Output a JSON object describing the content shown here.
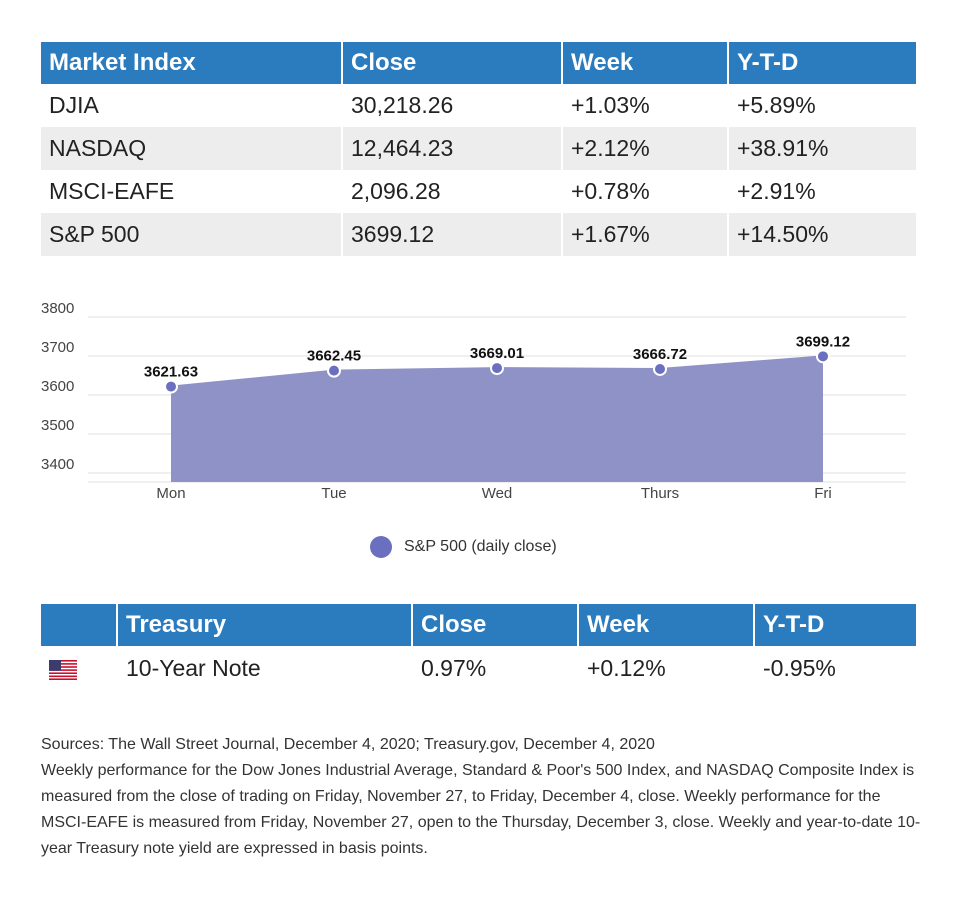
{
  "market_table": {
    "headers": [
      "Market Index",
      "Close",
      "Week",
      "Y-T-D"
    ],
    "rows": [
      [
        "DJIA",
        "30,218.26",
        "+1.03%",
        "+5.89%"
      ],
      [
        "NASDAQ",
        "12,464.23",
        "+2.12%",
        "+38.91%"
      ],
      [
        "MSCI-EAFE",
        "2,096.28",
        "+0.78%",
        "+2.91%"
      ],
      [
        "S&P 500",
        "3699.12",
        "+1.67%",
        "+14.50%"
      ]
    ]
  },
  "chart_data": {
    "type": "area",
    "categories": [
      "Mon",
      "Tue",
      "Wed",
      "Thurs",
      "Fri"
    ],
    "series": [
      {
        "name": "S&P 500 (daily close)",
        "values": [
          3621.63,
          3662.45,
          3669.01,
          3666.72,
          3699.12
        ]
      }
    ],
    "data_labels": [
      "3621.63",
      "3662.45",
      "3669.01",
      "3666.72",
      "3699.12"
    ],
    "yticks": [
      "3800",
      "3700",
      "3600",
      "3500",
      "3400"
    ],
    "ylim": [
      3400,
      3800
    ],
    "grid": true,
    "legend": "bottom-center",
    "colors": {
      "fill": "#8f92c6",
      "marker": "#6b6fbf"
    }
  },
  "legend": {
    "label": "S&P 500 (daily close)"
  },
  "treasury_table": {
    "headers": [
      "",
      "Treasury",
      "Close",
      "Week",
      "Y-T-D"
    ],
    "rows": [
      {
        "icon": "us-flag-icon",
        "name": "10-Year Note",
        "close": "0.97%",
        "week": "+0.12%",
        "ytd": "-0.95%"
      }
    ]
  },
  "notes": [
    "Sources: The Wall Street Journal, December 4, 2020; Treasury.gov, December 4, 2020",
    "Weekly performance for the Dow Jones Industrial Average, Standard & Poor's 500 Index, and NASDAQ Composite Index is measured from the close of trading on Friday, November 27, to Friday, December 4, close. Weekly performance for the MSCI-EAFE is measured from Friday, November 27, open to the Thursday, December 3, close. Weekly and year-to-date 10-year Treasury note yield are expressed in basis points."
  ],
  "colors": {
    "header_bg": "#2b7bbf",
    "row_alt": "#ededed"
  }
}
